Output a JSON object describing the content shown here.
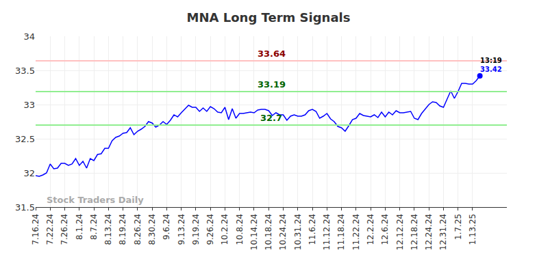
{
  "chart_data": {
    "type": "line",
    "title": "MNA Long Term Signals",
    "categories": [
      "7.16.24",
      null,
      null,
      null,
      "7.22.24",
      null,
      null,
      null,
      "7.26.24",
      null,
      null,
      null,
      "8.1.24",
      null,
      null,
      null,
      "8.7.24",
      null,
      null,
      null,
      "8.13.24",
      null,
      null,
      null,
      "8.19.24",
      null,
      null,
      null,
      "8.26.24",
      null,
      null,
      null,
      "8.30.24",
      null,
      null,
      null,
      "9.6.24",
      null,
      null,
      null,
      "9.13.24",
      null,
      null,
      null,
      "9.19.24",
      null,
      null,
      null,
      "9.26.24",
      null,
      null,
      null,
      "10.2.24",
      null,
      null,
      null,
      "10.8.24",
      null,
      null,
      null,
      "10.14.24",
      null,
      null,
      null,
      "10.18.24",
      null,
      null,
      null,
      "10.24.24",
      null,
      null,
      null,
      "10.31.24",
      null,
      null,
      null,
      "11.6.24",
      null,
      null,
      null,
      "11.12.24",
      null,
      null,
      null,
      "11.18.24",
      null,
      null,
      null,
      "11.22.24",
      null,
      null,
      null,
      "12.2.24",
      null,
      null,
      null,
      "12.6.24",
      null,
      null,
      null,
      "12.12.24",
      null,
      null,
      null,
      "12.18.24",
      null,
      null,
      null,
      "12.24.24",
      null,
      null,
      null,
      "12.31.24",
      null,
      null,
      null,
      "1.7.25",
      null,
      null,
      null,
      "1.13.25",
      null,
      null
    ],
    "values": [
      31.96,
      31.95,
      31.97,
      32.0,
      32.13,
      32.06,
      32.07,
      32.14,
      32.14,
      32.11,
      32.13,
      32.21,
      32.11,
      32.17,
      32.07,
      32.21,
      32.18,
      32.27,
      32.28,
      32.36,
      32.36,
      32.47,
      32.52,
      32.54,
      32.58,
      32.59,
      32.66,
      32.56,
      32.61,
      32.64,
      32.68,
      32.75,
      32.73,
      32.67,
      32.7,
      32.75,
      32.71,
      32.77,
      32.85,
      32.82,
      32.88,
      32.93,
      32.99,
      32.96,
      32.96,
      32.9,
      32.95,
      32.9,
      32.97,
      32.94,
      32.89,
      32.88,
      32.96,
      32.78,
      32.94,
      32.8,
      32.87,
      32.87,
      32.88,
      32.89,
      32.88,
      32.92,
      32.93,
      32.93,
      32.91,
      32.84,
      32.88,
      32.85,
      32.85,
      32.77,
      32.83,
      32.85,
      32.83,
      32.83,
      32.85,
      32.91,
      32.93,
      32.9,
      32.8,
      32.83,
      32.87,
      32.79,
      32.75,
      32.68,
      32.66,
      32.61,
      32.69,
      32.78,
      32.8,
      32.87,
      32.84,
      32.83,
      32.82,
      32.85,
      32.81,
      32.89,
      32.82,
      32.89,
      32.85,
      32.91,
      32.88,
      32.88,
      32.89,
      32.9,
      32.8,
      32.78,
      32.87,
      32.93,
      33.0,
      33.04,
      33.03,
      32.98,
      32.96,
      33.08,
      33.2,
      33.09,
      33.19,
      33.31,
      33.31,
      33.3,
      33.3,
      33.35,
      33.42
    ],
    "color": "#0000ff",
    "ylim": [
      31.5,
      34
    ],
    "yticks": [
      31.5,
      32,
      32.5,
      33,
      33.5,
      34
    ],
    "grid": true,
    "reference_lines": [
      {
        "value": 33.64,
        "label": "33.64",
        "color": "#ffc0c0",
        "label_color": "#8b0000"
      },
      {
        "value": 33.19,
        "label": "33.19",
        "color": "#90ee90",
        "label_color": "#006400"
      },
      {
        "value": 32.7,
        "label": "32.7",
        "color": "#90ee90",
        "label_color": "#006400"
      }
    ],
    "last_point": {
      "time_label": "13:19",
      "value_label": "33.42",
      "time_color": "#000000",
      "value_color": "#0000ff"
    },
    "watermark": "Stock Traders Daily"
  }
}
